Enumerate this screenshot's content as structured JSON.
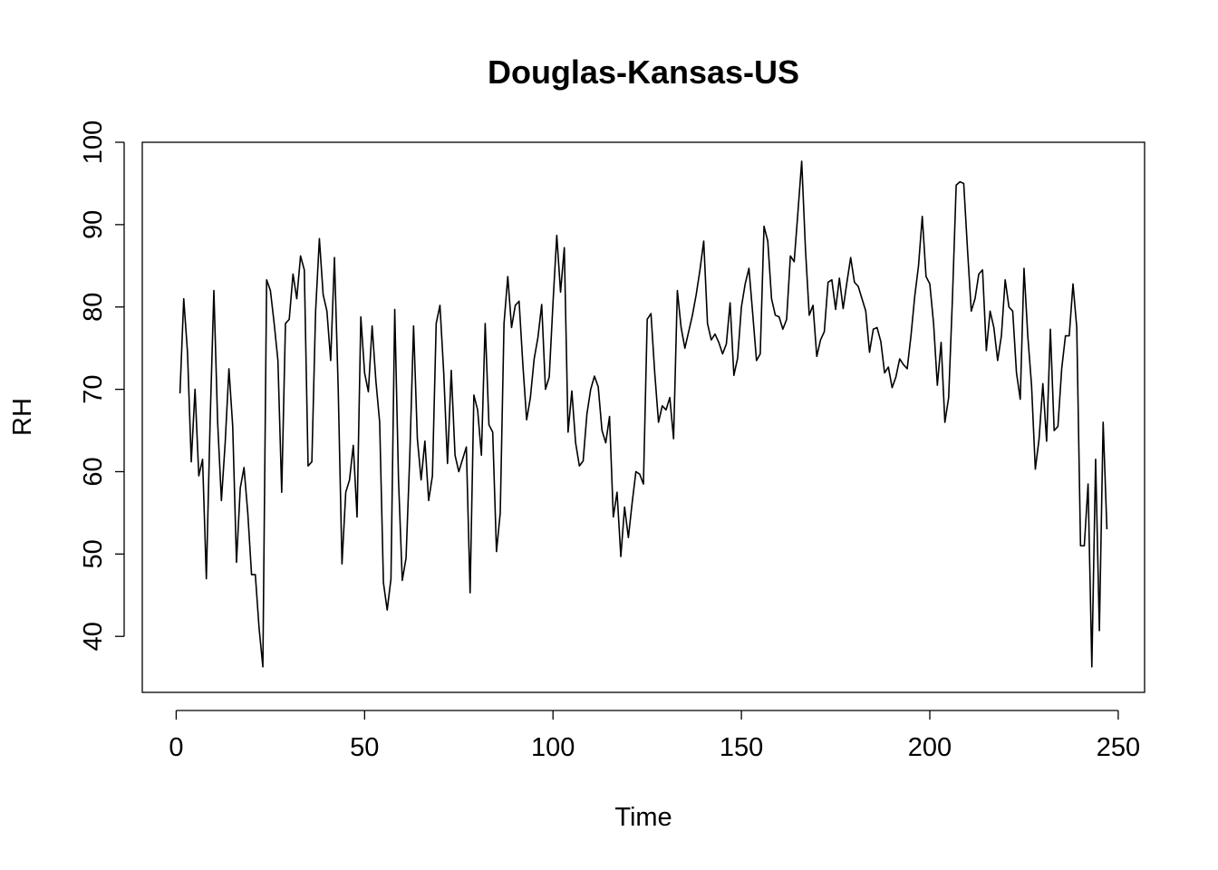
{
  "chart_data": {
    "type": "line",
    "title": "Douglas-Kansas-US",
    "xlabel": "Time",
    "ylabel": "RH",
    "xlim": [
      -9,
      257
    ],
    "ylim": [
      33.2,
      100
    ],
    "xticks": [
      0,
      50,
      100,
      150,
      200,
      250
    ],
    "yticks": [
      40,
      50,
      60,
      70,
      80,
      90,
      100
    ],
    "x_tick_labels": [
      "0",
      "50",
      "100",
      "150",
      "200",
      "250"
    ],
    "y_tick_labels": [
      "40",
      "50",
      "60",
      "70",
      "80",
      "90",
      "100"
    ],
    "grid": false,
    "legend": "none",
    "line_color": "#000000",
    "series": [
      {
        "x_start": 1,
        "values": [
          69.5,
          81.0,
          74.5,
          61.2,
          70.0,
          59.5,
          61.5,
          47.0,
          66.0,
          82.0,
          66.0,
          56.5,
          63.5,
          72.5,
          65.5,
          49.0,
          58.0,
          60.5,
          55.0,
          47.5,
          47.5,
          41.0,
          36.3,
          83.3,
          82.0,
          78.0,
          73.5,
          57.5,
          78.0,
          78.5,
          84.0,
          81.0,
          86.2,
          84.5,
          60.7,
          61.2,
          79.5,
          88.3,
          81.5,
          79.5,
          73.5,
          86.0,
          70.0,
          48.8,
          57.5,
          59.0,
          63.2,
          54.5,
          78.8,
          72.0,
          69.7,
          77.7,
          71.0,
          66.0,
          46.5,
          43.2,
          47.0,
          79.7,
          59.0,
          46.8,
          49.5,
          62.0,
          77.7,
          64.0,
          59.0,
          63.7,
          56.5,
          59.5,
          78.0,
          80.2,
          72.0,
          61.0,
          72.3,
          62.0,
          60.0,
          61.5,
          63.0,
          45.3,
          69.3,
          67.5,
          62.0,
          78.0,
          65.7,
          64.8,
          50.3,
          55.0,
          78.0,
          83.7,
          77.5,
          80.2,
          80.7,
          73.0,
          66.3,
          69.0,
          73.7,
          76.3,
          80.3,
          70.0,
          71.5,
          80.5,
          88.7,
          81.8,
          87.2,
          64.8,
          69.8,
          63.5,
          60.7,
          61.3,
          67.0,
          70.0,
          71.6,
          70.3,
          65.0,
          63.5,
          66.7,
          54.5,
          57.5,
          49.7,
          55.7,
          52.0,
          56.2,
          60.0,
          59.7,
          58.5,
          78.5,
          79.2,
          72.0,
          66.0,
          68.0,
          67.5,
          69.0,
          64.0,
          82.0,
          77.5,
          75.0,
          77.0,
          79.0,
          81.5,
          84.5,
          88.0,
          78.0,
          76.0,
          76.7,
          75.7,
          74.3,
          75.5,
          80.5,
          71.7,
          73.8,
          80.0,
          82.8,
          84.7,
          79.2,
          73.5,
          74.3,
          89.8,
          88.0,
          81.0,
          79.0,
          78.8,
          77.3,
          78.5,
          86.2,
          85.5,
          91.5,
          97.7,
          87.0,
          79.0,
          80.2,
          74.0,
          76.0,
          77.0,
          83.0,
          83.3,
          79.7,
          83.5,
          79.8,
          83.0,
          86.0,
          83.0,
          82.5,
          81.0,
          79.5,
          74.5,
          77.3,
          77.5,
          75.8,
          72.0,
          72.7,
          70.2,
          71.5,
          73.7,
          73.0,
          72.5,
          76.5,
          81.3,
          85.0,
          91.0,
          83.7,
          82.8,
          78.0,
          70.5,
          75.7,
          66.0,
          69.0,
          81.0,
          94.8,
          95.2,
          95.0,
          87.0,
          79.5,
          81.0,
          84.0,
          84.5,
          74.7,
          79.5,
          77.5,
          73.5,
          76.5,
          83.3,
          80.0,
          79.5,
          72.0,
          68.8,
          84.7,
          76.5,
          70.5,
          60.3,
          64.0,
          70.7,
          63.7,
          77.3,
          65.0,
          65.5,
          72.5,
          76.5,
          76.5,
          82.8,
          77.5,
          51.0,
          51.0,
          58.5,
          36.3,
          61.5,
          40.7,
          66.0,
          53.0
        ]
      }
    ]
  }
}
